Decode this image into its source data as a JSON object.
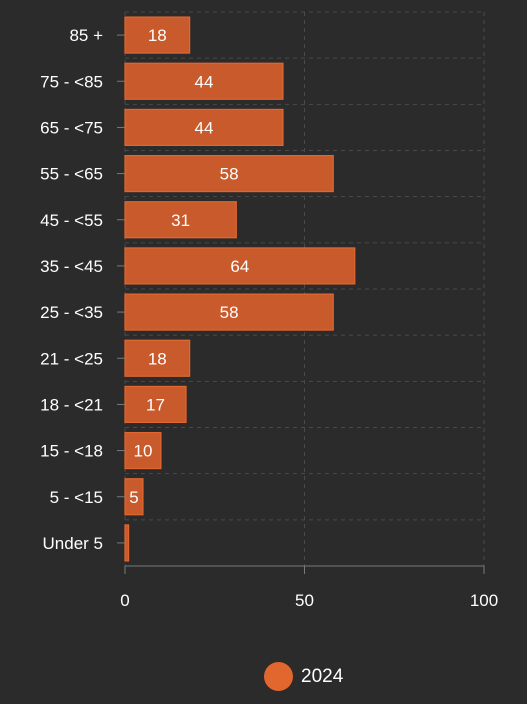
{
  "chart_data": {
    "type": "bar",
    "orientation": "horizontal",
    "categories": [
      "85 +",
      "75 - <85",
      "65 - <75",
      "55 - <65",
      "45 - <55",
      "35 - <45",
      "25 - <35",
      "21 - <25",
      "18 - <21",
      "15 - <18",
      "5 - <15",
      "Under 5"
    ],
    "series": [
      {
        "name": "2024",
        "values": [
          18,
          44,
          44,
          58,
          31,
          64,
          58,
          18,
          17,
          10,
          5,
          1
        ],
        "data_labels": [
          "18",
          "44",
          "44",
          "58",
          "31",
          "64",
          "58",
          "18",
          "17",
          "10",
          "5",
          ""
        ]
      }
    ],
    "xlim": [
      0,
      100
    ],
    "x_ticks": [
      0,
      50,
      100
    ],
    "x_tick_labels": [
      "0",
      "50",
      "100"
    ],
    "grid": true,
    "legend_position": "bottom",
    "colors": {
      "bar_fill": "#c85a2c",
      "bar_stroke": "#e2672f",
      "background": "#2b2b2b",
      "grid": "#4a4a4a",
      "axis": "#7a7a7a",
      "text": "#ffffff"
    }
  },
  "legend": {
    "label": "2024",
    "color": "#e2672f"
  }
}
